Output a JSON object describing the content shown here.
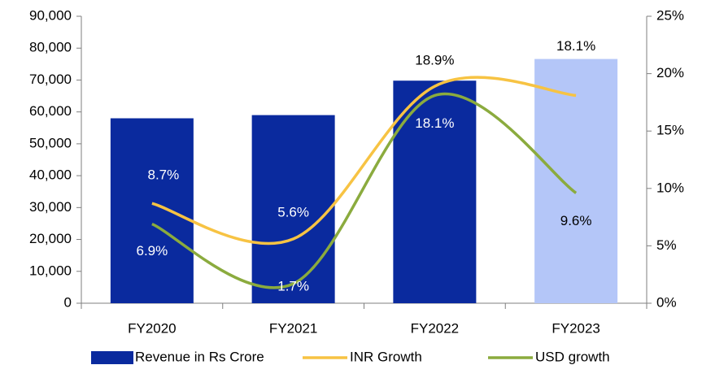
{
  "chart_data": {
    "type": "bar-line",
    "categories": [
      "FY2020",
      "FY2021",
      "FY2022",
      "FY2023"
    ],
    "series": [
      {
        "name": "Revenue in Rs Crore",
        "type": "bar",
        "color": "#0a2a9e",
        "colors": [
          "#0a2a9e",
          "#0a2a9e",
          "#0a2a9e",
          "#b4c6f8"
        ],
        "values": [
          58000,
          59000,
          69800,
          76600
        ]
      },
      {
        "name": "INR Growth",
        "type": "line",
        "axis": "y2",
        "color": "#f7c343",
        "values": [
          8.7,
          5.6,
          18.9,
          18.1
        ],
        "value_labels": [
          "8.7%",
          "5.6%",
          "18.9%",
          "18.1%"
        ]
      },
      {
        "name": "USD growth",
        "type": "line",
        "axis": "y2",
        "color": "#8bab3e",
        "values": [
          6.9,
          1.7,
          18.1,
          9.6
        ],
        "value_labels": [
          "6.9%",
          "1.7%",
          "18.1%",
          "9.6%"
        ]
      }
    ],
    "ylim": [
      0,
      90000
    ],
    "yticks": [
      0,
      {
        "value": 10000,
        "label": "10,000"
      },
      {
        "value": 20000,
        "label": "20,000"
      },
      {
        "value": 30000,
        "label": "30,000"
      },
      {
        "value": 40000,
        "label": "40,000"
      },
      {
        "value": 50000,
        "label": "50,000"
      },
      {
        "value": 60000,
        "label": "60,000"
      },
      {
        "value": 70000,
        "label": "70,000"
      },
      {
        "value": 80000,
        "label": "80,000"
      },
      {
        "value": 90000,
        "label": "90,000"
      }
    ],
    "y2lim": [
      0,
      25
    ],
    "y2ticks": [
      {
        "value": 0,
        "label": "0%"
      },
      {
        "value": 5,
        "label": "5%"
      },
      {
        "value": 10,
        "label": "10%"
      },
      {
        "value": 15,
        "label": "15%"
      },
      {
        "value": 20,
        "label": "20%"
      },
      {
        "value": 25,
        "label": "25%"
      }
    ],
    "grid": false,
    "legend": "bottom"
  }
}
